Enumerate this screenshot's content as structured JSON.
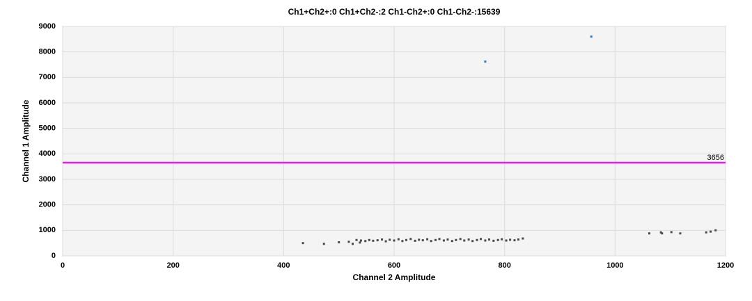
{
  "chart_data": {
    "type": "scatter",
    "title": "Ch1+Ch2+:0  Ch1+Ch2-:2  Ch1-Ch2+:0  Ch1-Ch2-:15639",
    "x_label": "Channel 2 Amplitude",
    "y_label": "Channel 1 Amplitude",
    "xlim": [
      0,
      1200
    ],
    "ylim": [
      0,
      9000
    ],
    "xticks": [
      0,
      200,
      400,
      600,
      800,
      1000,
      1200
    ],
    "yticks": [
      0,
      1000,
      2000,
      3000,
      4000,
      5000,
      6000,
      7000,
      8000,
      9000
    ],
    "grid": true,
    "threshold": {
      "value": 3656,
      "color": "#e81ee8"
    },
    "series": [
      {
        "color": "#1f7fd6",
        "x": [
          765,
          957
        ],
        "y": [
          7620,
          8600
        ]
      },
      {
        "color": "#4a4a4a",
        "x": [
          435,
          473,
          500,
          518,
          525,
          532,
          538,
          540,
          548,
          555,
          562,
          570,
          578,
          585,
          592,
          600,
          608,
          615,
          622,
          630,
          638,
          645,
          652,
          660,
          667,
          675,
          682,
          690,
          697,
          705,
          712,
          720,
          727,
          735,
          742,
          750,
          757,
          765,
          772,
          780,
          788,
          795,
          803,
          810,
          818,
          825,
          833,
          1062,
          1083,
          1085,
          1102,
          1118,
          1165,
          1173,
          1182
        ],
        "y": [
          500,
          470,
          530,
          550,
          470,
          620,
          520,
          600,
          580,
          620,
          590,
          610,
          640,
          570,
          630,
          600,
          650,
          580,
          620,
          660,
          590,
          630,
          610,
          650,
          580,
          620,
          660,
          600,
          640,
          580,
          620,
          660,
          600,
          640,
          580,
          620,
          660,
          600,
          640,
          590,
          620,
          650,
          600,
          630,
          610,
          640,
          680,
          880,
          920,
          880,
          930,
          880,
          920,
          950,
          1000
        ]
      }
    ]
  }
}
